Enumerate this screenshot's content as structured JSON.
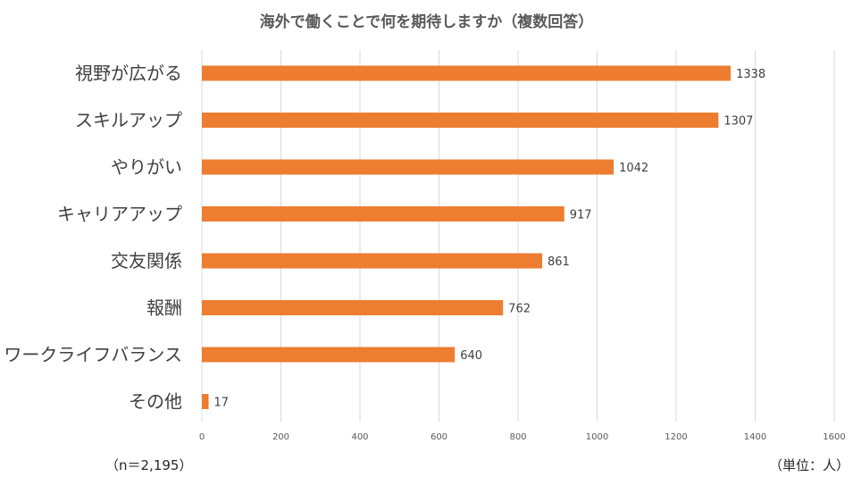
{
  "chart_data": {
    "type": "bar",
    "orientation": "horizontal",
    "title": "海外で働くことで何を期待しますか（複数回答）",
    "categories": [
      "視野が広がる",
      "スキルアップ",
      "やりがい",
      "キャリアアップ",
      "交友関係",
      "報酬",
      "ワークライフバランス",
      "その他"
    ],
    "values": [
      1338,
      1307,
      1042,
      917,
      861,
      762,
      640,
      17
    ],
    "xlim": [
      0,
      1600
    ],
    "xticks": [
      0,
      200,
      400,
      600,
      800,
      1000,
      1200,
      1400,
      1600
    ],
    "grid": true,
    "data_labels": true,
    "bar_color": "#ED7D31",
    "grid_color": "#D9D9D9"
  },
  "notes": {
    "sample_size": "（n＝2,195）",
    "unit": "（単位：人）"
  }
}
